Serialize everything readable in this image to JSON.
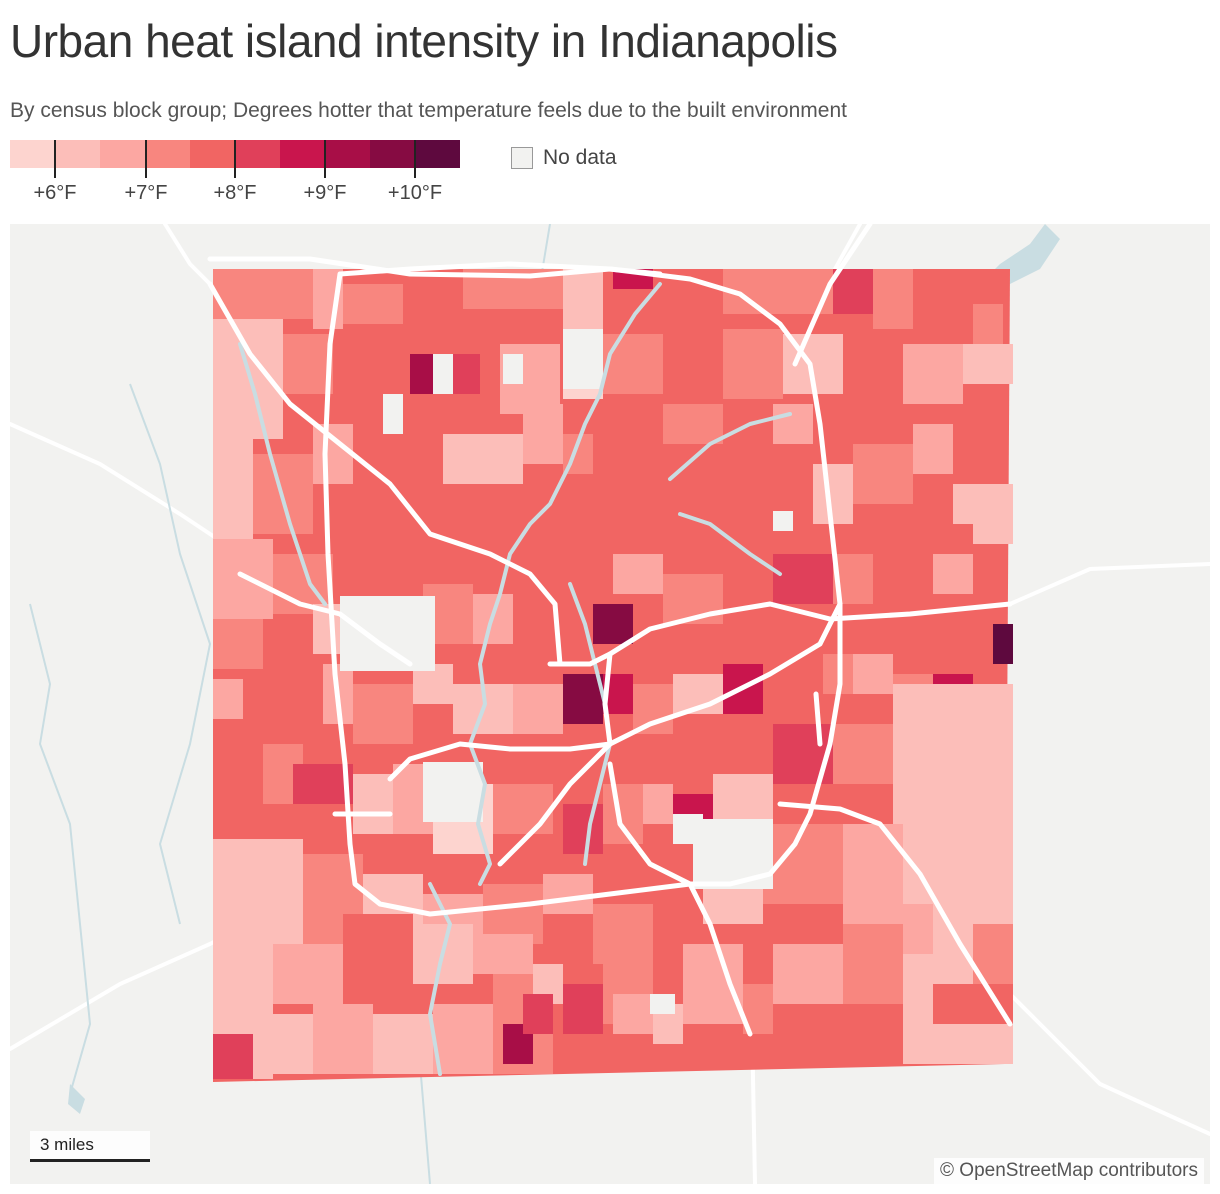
{
  "title": "Urban heat island intensity in Indianapolis",
  "subtitle": "By census block group; Degrees hotter that temperature feels due to the built environment",
  "legend": {
    "colors": [
      "#fdd4cf",
      "#fcbeb9",
      "#fca7a2",
      "#f8867f",
      "#f16563",
      "#e0405a",
      "#c9154d",
      "#a80e47",
      "#860b42",
      "#5e093e"
    ],
    "ticks": [
      "+6°F",
      "+7°F",
      "+8°F",
      "+9°F",
      "+10°F"
    ],
    "no_data_label": "No data",
    "no_data_color": "#f2f2f0"
  },
  "map": {
    "background_color": "#f2f2f0",
    "water_color": "#c9dde2",
    "road_color": "#ffffff",
    "scale_label": "3 miles",
    "attribution": "© OpenStreetMap contributors"
  }
}
